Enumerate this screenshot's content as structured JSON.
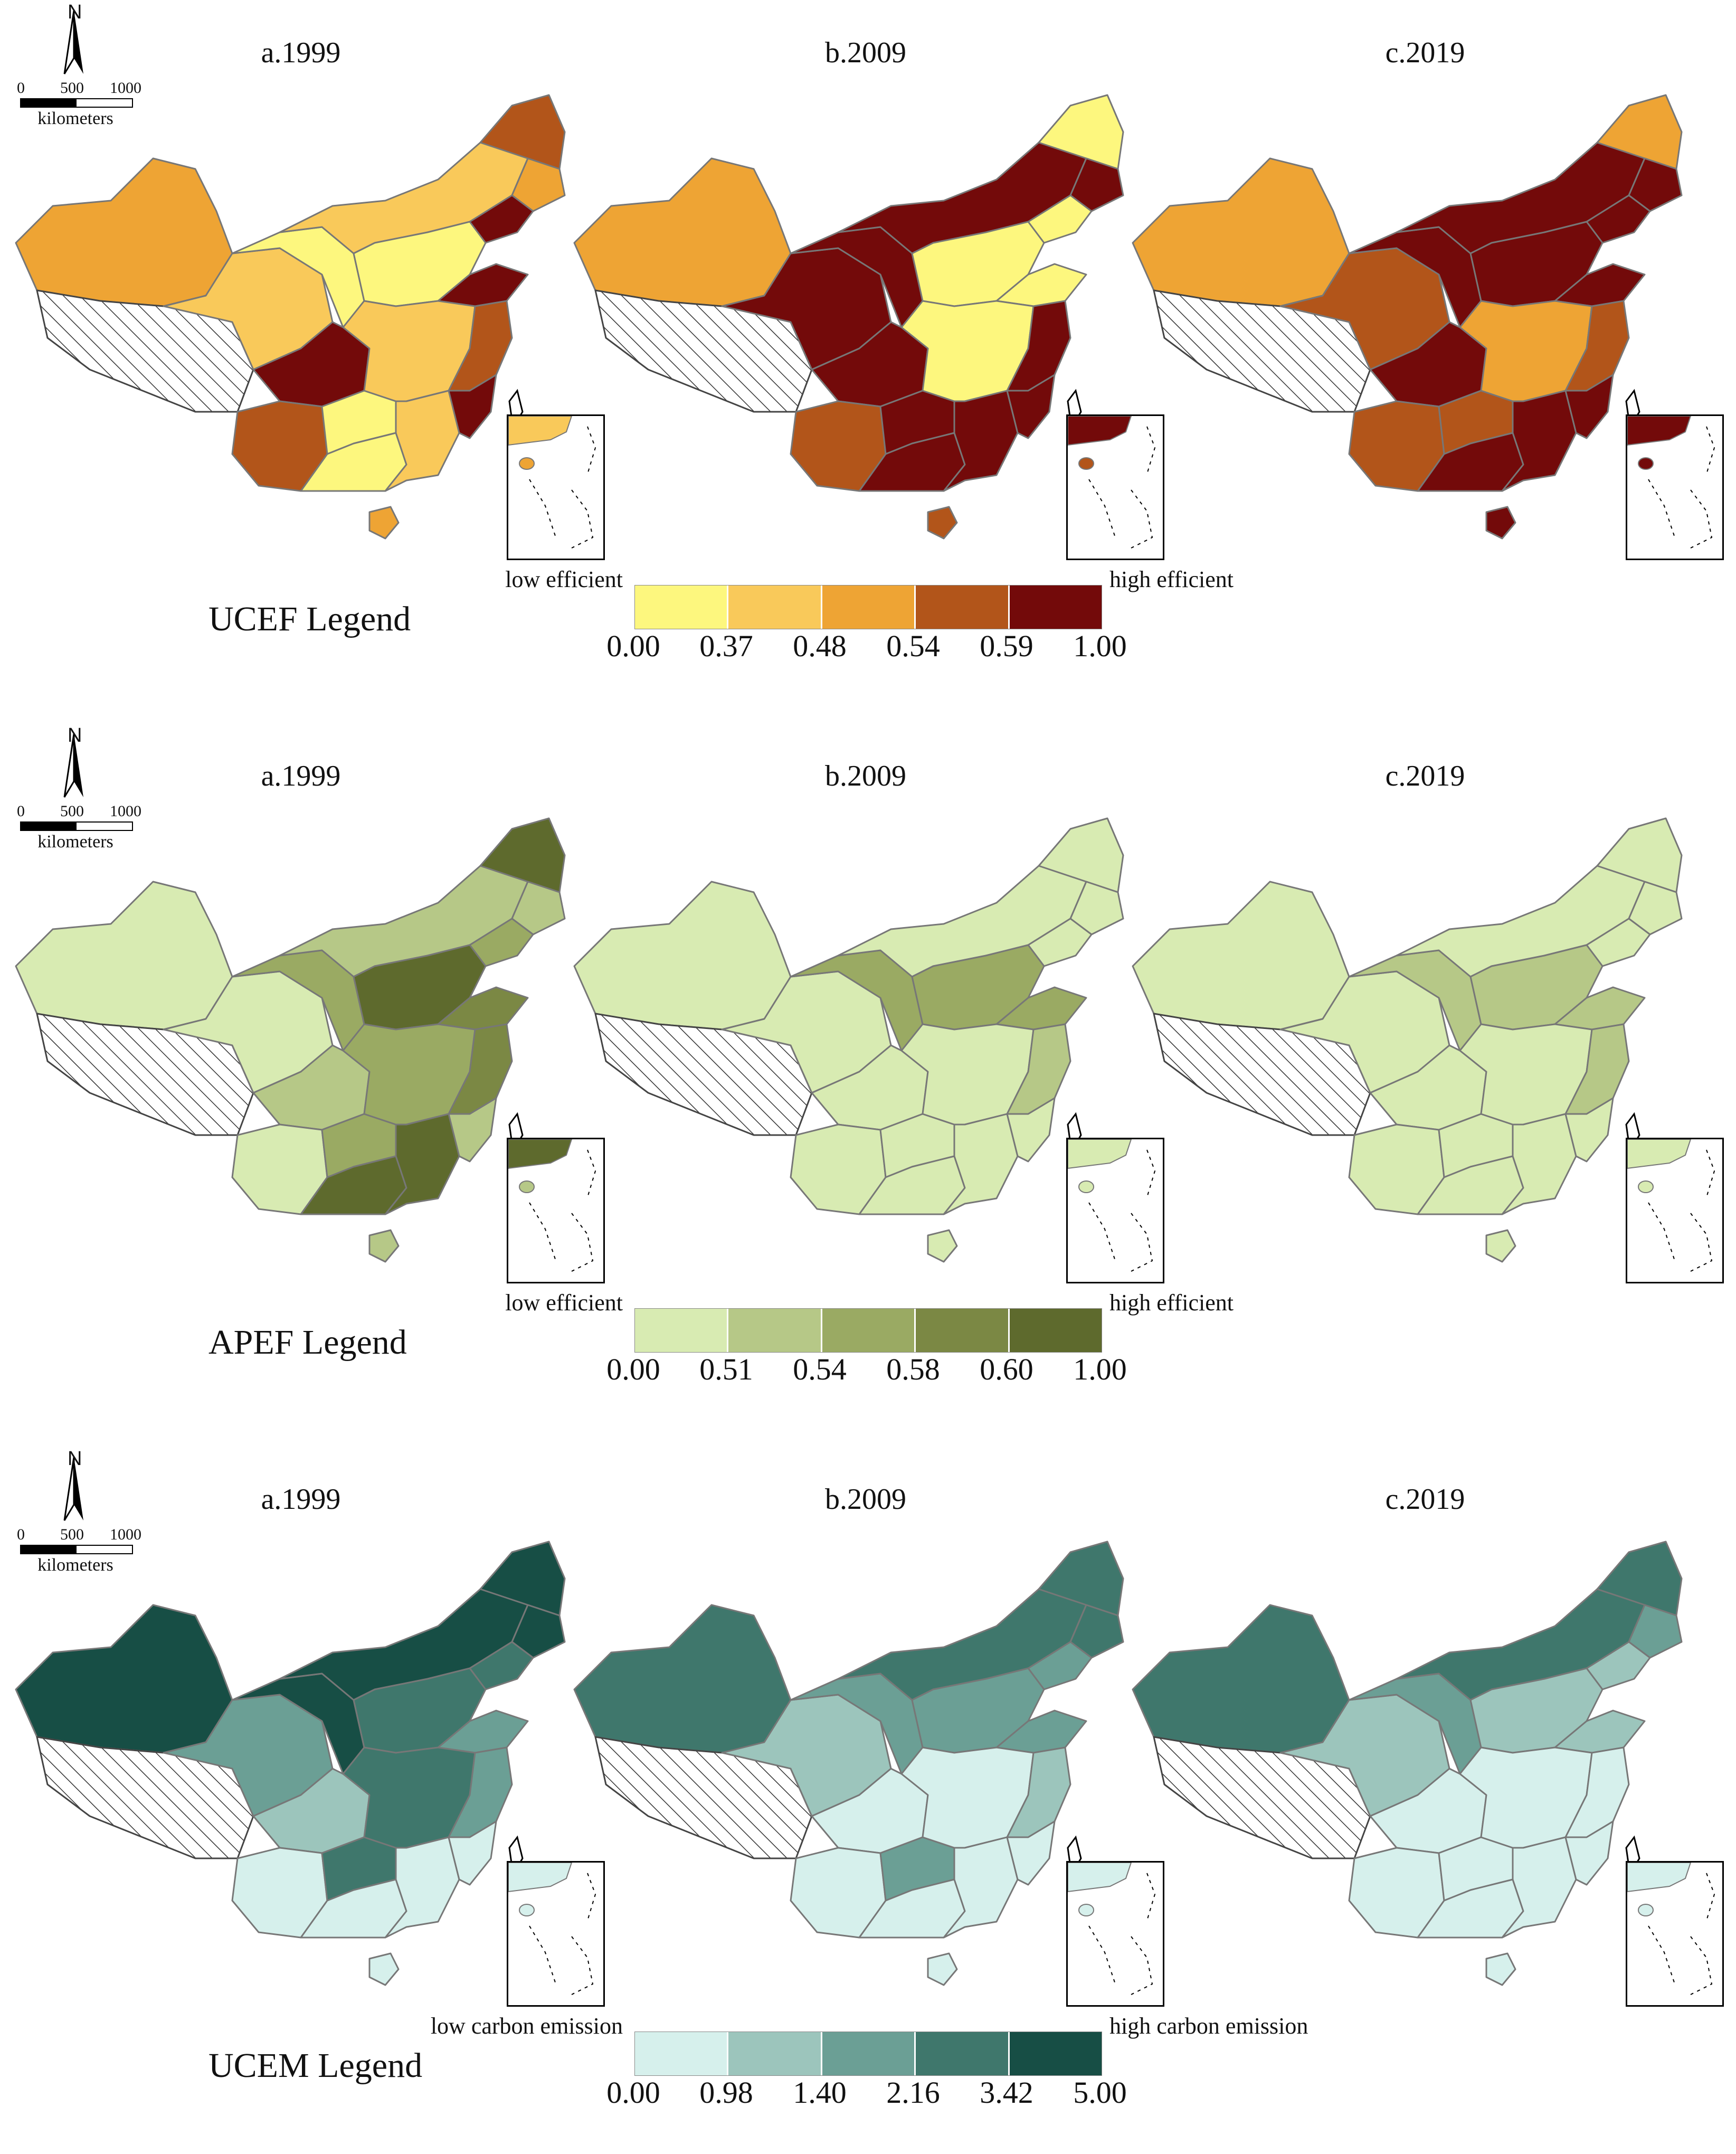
{
  "scale_bar": {
    "ticks": [
      "0",
      "500",
      "1000"
    ],
    "unit": "kilometers",
    "north_label": "N"
  },
  "panel_titles": [
    "a.1999",
    "b.2009",
    "c.2019"
  ],
  "sections": [
    {
      "legend_name": "UCEF   Legend",
      "low_label": "low efficient",
      "high_label": "high efficient",
      "breaks": [
        "0.00",
        "0.37",
        "0.48",
        "0.54",
        "0.59",
        "1.00"
      ],
      "colors": [
        "#fdf77e",
        "#f9c95a",
        "#eea434",
        "#b2551a",
        "#730a0a"
      ],
      "maps": [
        {
          "year_label": "a.1999",
          "regions": {
            "xinjiang": 2,
            "tibet": -1,
            "qinghai": 1,
            "gansu": 0,
            "inner_mongolia": 1,
            "heilongjiang": 3,
            "jilin": 2,
            "liaoning": 4,
            "central_north": 0,
            "shandong": 4,
            "sichuan": 4,
            "yunnan": 3,
            "guizhou": 0,
            "central_south": 1,
            "east_coast": 3,
            "guangxi": 0,
            "guangdong": 1,
            "fujian": 4,
            "hainan": 2
          }
        },
        {
          "year_label": "b.2009",
          "regions": {
            "xinjiang": 2,
            "tibet": -1,
            "qinghai": 4,
            "gansu": 4,
            "inner_mongolia": 4,
            "heilongjiang": 0,
            "jilin": 4,
            "liaoning": 0,
            "central_north": 0,
            "shandong": 0,
            "sichuan": 4,
            "yunnan": 3,
            "guizhou": 4,
            "central_south": 0,
            "east_coast": 4,
            "guangxi": 4,
            "guangdong": 4,
            "fujian": 4,
            "hainan": 3
          }
        },
        {
          "year_label": "c.2019",
          "regions": {
            "xinjiang": 2,
            "tibet": -1,
            "qinghai": 3,
            "gansu": 4,
            "inner_mongolia": 4,
            "heilongjiang": 2,
            "jilin": 4,
            "liaoning": 4,
            "central_north": 4,
            "shandong": 4,
            "sichuan": 4,
            "yunnan": 3,
            "guizhou": 3,
            "central_south": 2,
            "east_coast": 3,
            "guangxi": 4,
            "guangdong": 4,
            "fujian": 4,
            "hainan": 4
          }
        }
      ]
    },
    {
      "legend_name": "APEF   Legend",
      "low_label": "low efficient",
      "high_label": "high efficient",
      "breaks": [
        "0.00",
        "0.51",
        "0.54",
        "0.58",
        "0.60",
        "1.00"
      ],
      "colors": [
        "#d8ebb2",
        "#b6c887",
        "#9aaa63",
        "#7b8844",
        "#5e6a2d"
      ],
      "maps": [
        {
          "year_label": "a.1999",
          "regions": {
            "xinjiang": 0,
            "tibet": -1,
            "qinghai": 0,
            "gansu": 2,
            "inner_mongolia": 1,
            "heilongjiang": 4,
            "jilin": 1,
            "liaoning": 2,
            "central_north": 4,
            "shandong": 3,
            "sichuan": 1,
            "yunnan": 0,
            "guizhou": 2,
            "central_south": 2,
            "east_coast": 3,
            "guangxi": 4,
            "guangdong": 4,
            "fujian": 1,
            "hainan": 1
          }
        },
        {
          "year_label": "b.2009",
          "regions": {
            "xinjiang": 0,
            "tibet": -1,
            "qinghai": 0,
            "gansu": 2,
            "inner_mongolia": 0,
            "heilongjiang": 0,
            "jilin": 0,
            "liaoning": 0,
            "central_north": 2,
            "shandong": 2,
            "sichuan": 0,
            "yunnan": 0,
            "guizhou": 0,
            "central_south": 0,
            "east_coast": 1,
            "guangxi": 0,
            "guangdong": 0,
            "fujian": 0,
            "hainan": 0
          }
        },
        {
          "year_label": "c.2019",
          "regions": {
            "xinjiang": 0,
            "tibet": -1,
            "qinghai": 0,
            "gansu": 1,
            "inner_mongolia": 0,
            "heilongjiang": 0,
            "jilin": 0,
            "liaoning": 0,
            "central_north": 1,
            "shandong": 1,
            "sichuan": 0,
            "yunnan": 0,
            "guizhou": 0,
            "central_south": 0,
            "east_coast": 1,
            "guangxi": 0,
            "guangdong": 0,
            "fujian": 0,
            "hainan": 0
          }
        }
      ]
    },
    {
      "legend_name": "UCEM  Legend",
      "low_label": "low carbon emission",
      "high_label": "high carbon emission",
      "breaks": [
        "0.00",
        "0.98",
        "1.40",
        "2.16",
        "3.42",
        "5.00"
      ],
      "colors": [
        "#d6f0ec",
        "#9cc5bc",
        "#6b9f95",
        "#3f776c",
        "#174e45"
      ],
      "maps": [
        {
          "year_label": "a.1999",
          "regions": {
            "xinjiang": 4,
            "tibet": -1,
            "qinghai": 2,
            "gansu": 4,
            "inner_mongolia": 4,
            "heilongjiang": 4,
            "jilin": 4,
            "liaoning": 3,
            "central_north": 3,
            "shandong": 2,
            "sichuan": 1,
            "yunnan": 0,
            "guizhou": 3,
            "central_south": 3,
            "east_coast": 2,
            "guangxi": 0,
            "guangdong": 0,
            "fujian": 0,
            "hainan": 0
          }
        },
        {
          "year_label": "b.2009",
          "regions": {
            "xinjiang": 3,
            "tibet": -1,
            "qinghai": 1,
            "gansu": 2,
            "inner_mongolia": 3,
            "heilongjiang": 3,
            "jilin": 3,
            "liaoning": 2,
            "central_north": 2,
            "shandong": 2,
            "sichuan": 0,
            "yunnan": 0,
            "guizhou": 2,
            "central_south": 0,
            "east_coast": 1,
            "guangxi": 0,
            "guangdong": 0,
            "fujian": 0,
            "hainan": 0
          }
        },
        {
          "year_label": "c.2019",
          "regions": {
            "xinjiang": 3,
            "tibet": -1,
            "qinghai": 1,
            "gansu": 2,
            "inner_mongolia": 3,
            "heilongjiang": 3,
            "jilin": 2,
            "liaoning": 1,
            "central_north": 1,
            "shandong": 1,
            "sichuan": 0,
            "yunnan": 0,
            "guizhou": 0,
            "central_south": 0,
            "east_coast": 0,
            "guangxi": 0,
            "guangdong": 0,
            "fujian": 0,
            "hainan": 0
          }
        }
      ]
    }
  ]
}
